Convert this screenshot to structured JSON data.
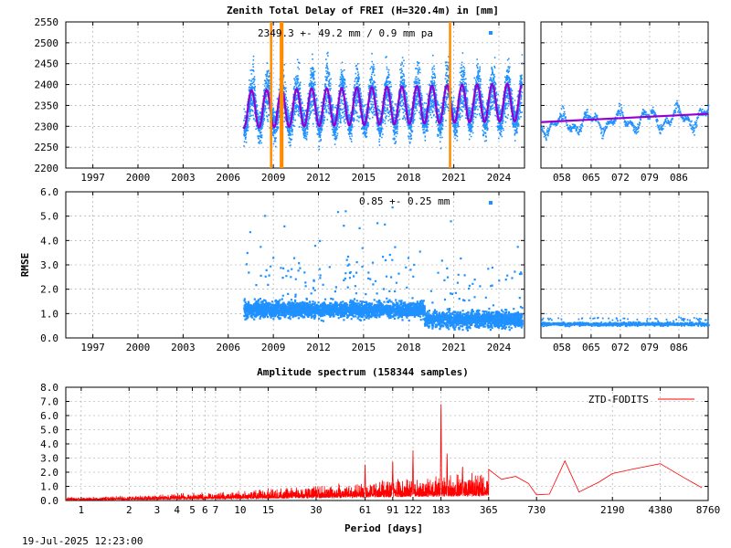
{
  "chart_data": [
    {
      "panel": "ztd",
      "type": "scatter",
      "title": "Zenith Total Delay of FREI (H=320.4m) in [mm]",
      "annotation": "2349.3 +-  49.2 mm /  0.9 mm pa",
      "xlabel": "",
      "ylabel": "",
      "xlim": [
        1995.2,
        2025.7
      ],
      "ylim": [
        2200,
        2550
      ],
      "x_ticks": [
        "1997",
        "2000",
        "2003",
        "2006",
        "2009",
        "2012",
        "2015",
        "2018",
        "2021",
        "2024"
      ],
      "y_ticks": [
        "2200",
        "2250",
        "2300",
        "2350",
        "2400",
        "2450",
        "2500",
        "2550"
      ],
      "data_start": 2007.0,
      "data_end": 2025.5,
      "mean": 2349.3,
      "std": 49.2,
      "seasonal_amplitude": 45,
      "trend_mm_per_year": 0.9,
      "vertical_markers": [
        2008.85,
        2009.5,
        2009.6,
        2020.75
      ],
      "colors": {
        "data": "#1e90ff",
        "model": "#9400d3",
        "markers": "#ff8c00"
      },
      "grid": true
    },
    {
      "panel": "ztd-recent",
      "type": "scatter",
      "xlim": [
        53,
        93
      ],
      "ylim": [
        2200,
        2550
      ],
      "x_ticks": [
        "058",
        "065",
        "072",
        "079",
        "086"
      ],
      "mean_start": 2310,
      "mean_end": 2330,
      "colors": {
        "data": "#1e90ff",
        "model": "#9400d3"
      },
      "grid": true
    },
    {
      "panel": "rmse",
      "type": "scatter",
      "annotation": "0.85 +-  0.25 mm",
      "ylabel": "RMSE",
      "xlim": [
        1995.2,
        2025.7
      ],
      "ylim": [
        0,
        6
      ],
      "x_ticks": [
        "1997",
        "2000",
        "2003",
        "2006",
        "2009",
        "2012",
        "2015",
        "2018",
        "2021",
        "2024"
      ],
      "y_ticks": [
        "0.0",
        "1.0",
        "2.0",
        "3.0",
        "4.0",
        "5.0",
        "6.0"
      ],
      "mean": 0.85,
      "std": 0.25,
      "colors": {
        "data": "#1e90ff"
      },
      "grid": true
    },
    {
      "panel": "rmse-recent",
      "type": "scatter",
      "xlim": [
        53,
        93
      ],
      "ylim": [
        0,
        6
      ],
      "x_ticks": [
        "058",
        "065",
        "072",
        "079",
        "086"
      ],
      "mean": 0.6,
      "colors": {
        "data": "#1e90ff"
      },
      "grid": true
    },
    {
      "panel": "spectrum",
      "type": "line",
      "title": "Amplitude spectrum (158344 samples)",
      "xlabel": "Period [days]",
      "ylabel": "",
      "x_scale": "log",
      "xlim": [
        0.8,
        8760
      ],
      "ylim": [
        0,
        8
      ],
      "x_ticks": [
        1,
        2,
        3,
        4,
        5,
        6,
        7,
        10,
        15,
        30,
        61,
        91,
        122,
        183,
        365,
        730,
        2190,
        4380,
        8760
      ],
      "y_ticks": [
        "0.0",
        "1.0",
        "2.0",
        "3.0",
        "4.0",
        "5.0",
        "6.0",
        "7.0",
        "8.0"
      ],
      "series": [
        {
          "name": "ZTD-FODITS",
          "x": [
            365,
            440,
            540,
            650,
            730,
            880,
            1100,
            1350,
            1800,
            2190,
            2900,
            4380,
            6200,
            8000
          ],
          "y": [
            2.2,
            1.5,
            1.7,
            1.2,
            0.4,
            0.45,
            2.8,
            0.6,
            1.3,
            1.9,
            2.2,
            2.6,
            1.6,
            0.9
          ]
        }
      ],
      "peaks": [
        {
          "x": 183,
          "y": 7.2
        },
        {
          "x": 122,
          "y": 3.6
        },
        {
          "x": 200,
          "y": 3.5
        },
        {
          "x": 91,
          "y": 3.0
        },
        {
          "x": 61,
          "y": 2.8
        },
        {
          "x": 250,
          "y": 2.6
        }
      ],
      "colors": {
        "line": "#ff0000"
      },
      "grid": true
    }
  ],
  "footer": {
    "timestamp": "19-Jul-2025 12:23:00"
  }
}
